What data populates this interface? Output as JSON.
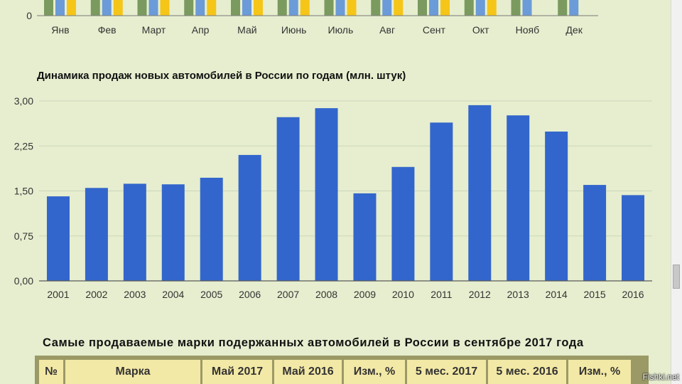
{
  "top_chart": {
    "type": "bar",
    "zero_label": "0",
    "months": [
      "Янв",
      "Фев",
      "Март",
      "Апр",
      "Май",
      "Июнь",
      "Июль",
      "Авг",
      "Сент",
      "Окт",
      "Нояб",
      "Дек"
    ],
    "series_colors": [
      "#7b9a5f",
      "#6b9bd8",
      "#f5c518"
    ],
    "bars_per_month": [
      3,
      3,
      3,
      3,
      3,
      3,
      3,
      3,
      3,
      3,
      2,
      2
    ]
  },
  "chart_data": {
    "type": "bar",
    "title": "Динамика продаж новых автомобилей в России по годам (млн. штук)",
    "categories": [
      "2001",
      "2002",
      "2003",
      "2004",
      "2005",
      "2006",
      "2007",
      "2008",
      "2009",
      "2010",
      "2011",
      "2012",
      "2013",
      "2014",
      "2015",
      "2016"
    ],
    "values": [
      1.41,
      1.55,
      1.62,
      1.61,
      1.72,
      2.1,
      2.73,
      2.88,
      1.46,
      1.9,
      2.64,
      2.93,
      2.76,
      2.49,
      1.6,
      1.43
    ],
    "yticks": [
      "0,00",
      "0,75",
      "1,50",
      "2,25",
      "3,00"
    ],
    "ylim": [
      0,
      3
    ],
    "grid": true,
    "bar_color": "#3366cc",
    "grid_color": "#cdd5bc"
  },
  "table": {
    "title": "Самые продаваемые марки подержанных автомобилей в России в сентябре 2017 года",
    "headers": [
      "№",
      "Марка",
      "Май 2017",
      "Май 2016",
      "Изм., %",
      "5 мес. 2017",
      "5 мес. 2016",
      "Изм., %"
    ]
  },
  "watermark": "Fishki.net"
}
